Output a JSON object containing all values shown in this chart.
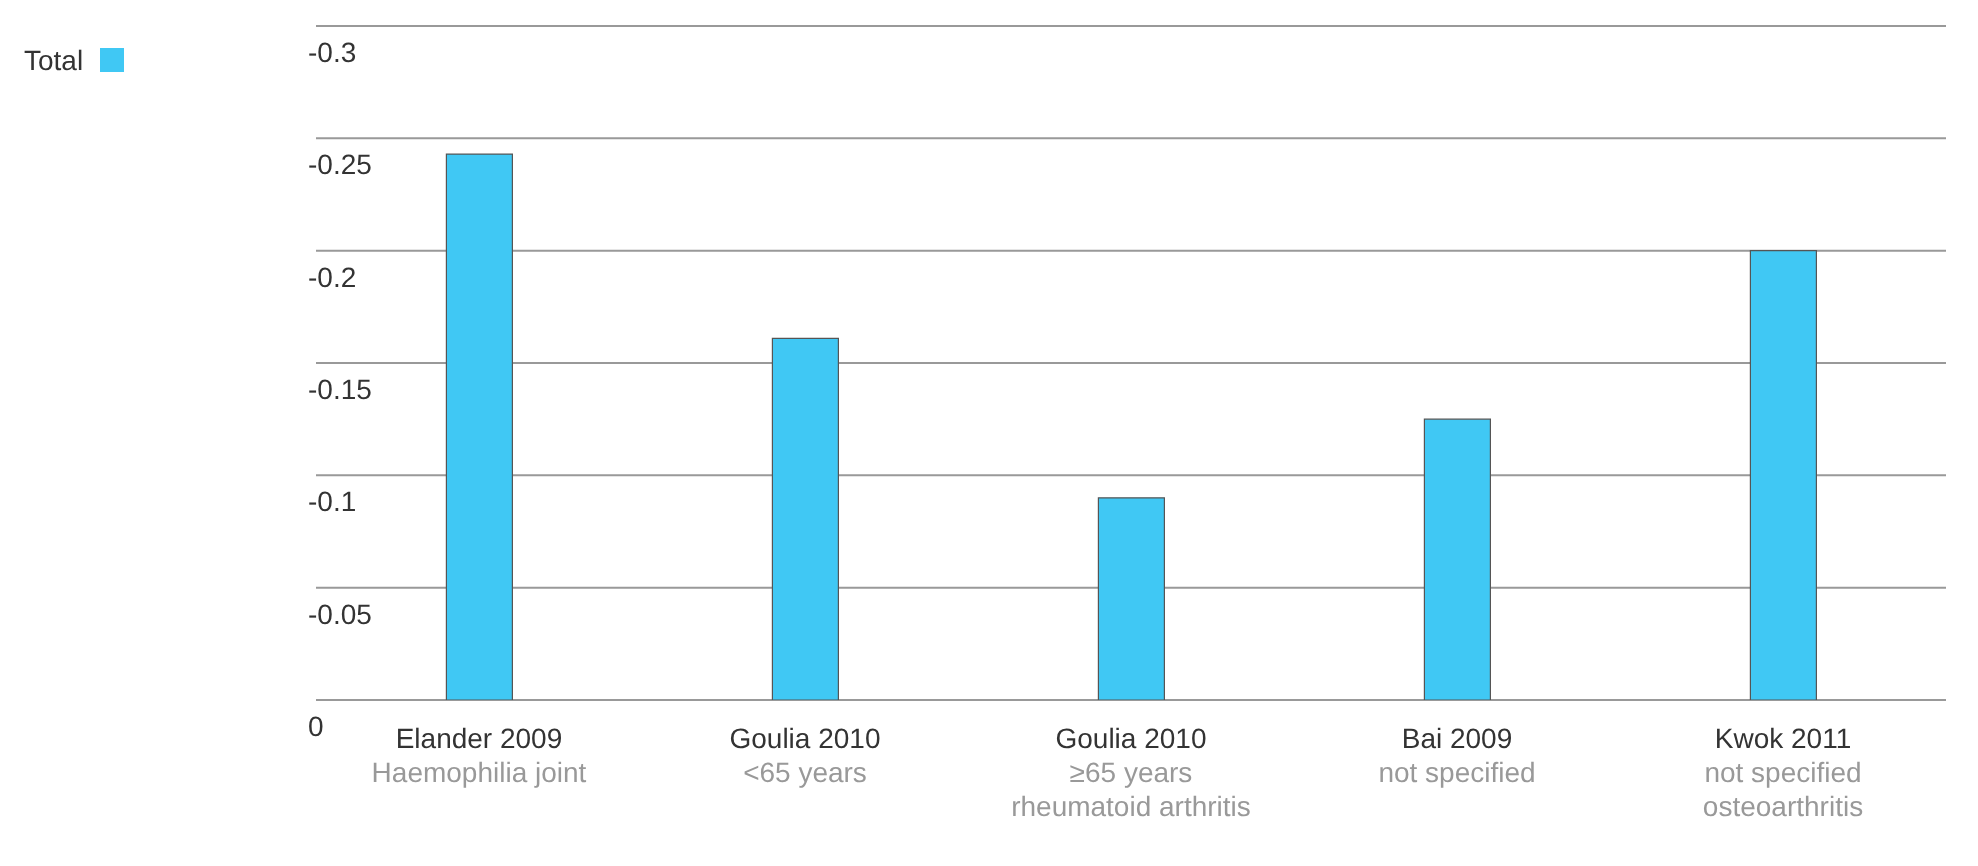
{
  "chart_data": {
    "type": "bar",
    "categories": [
      "Elander 2009\nHaemophilia joint",
      "Goulia 2010\n<65 years",
      "Goulia 2010\n≥65 years\nrheumatoid arthritis",
      "Bai 2009\nnot specified",
      "Kwok 2011\nnot specified\nosteoarthritis"
    ],
    "series": [
      {
        "name": "Total",
        "color": "#40c8f4",
        "values": [
          -0.243,
          -0.161,
          -0.09,
          -0.125,
          -0.2
        ]
      }
    ],
    "ylim": [
      0,
      -0.3
    ],
    "yticks": [
      0,
      -0.05,
      -0.1,
      -0.15,
      -0.2,
      -0.25,
      -0.3
    ],
    "grid": "y",
    "legend": "top left"
  }
}
